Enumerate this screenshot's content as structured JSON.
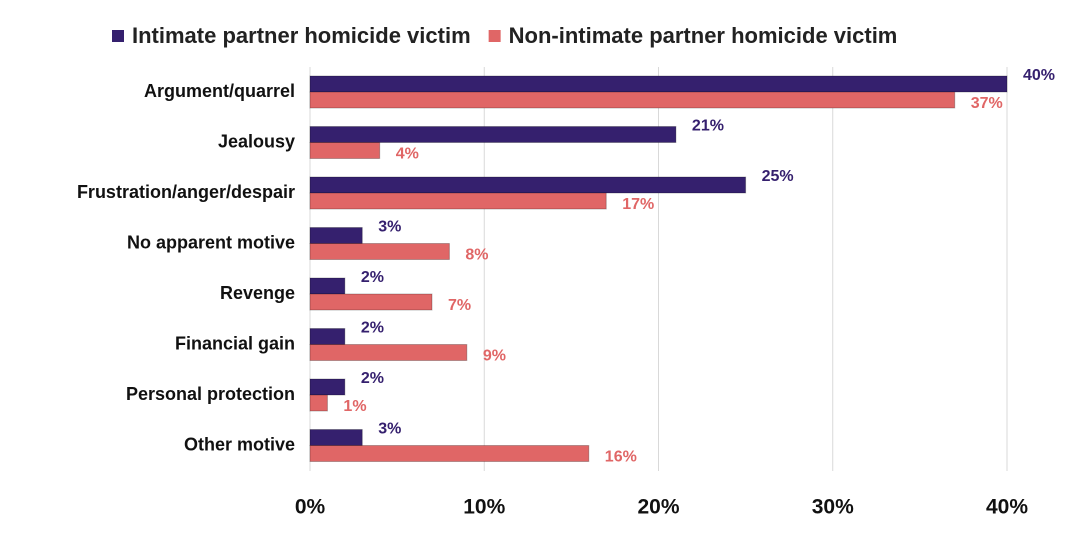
{
  "chart_data": {
    "type": "bar",
    "orientation": "horizontal",
    "categories": [
      "Argument/quarrel",
      "Jealousy",
      "Frustration/anger/despair",
      "No apparent motive",
      "Revenge",
      "Financial gain",
      "Personal protection",
      "Other motive"
    ],
    "series": [
      {
        "name": "Intimate partner homicide victim",
        "color": "#35206e",
        "values": [
          40,
          21,
          25,
          3,
          2,
          2,
          2,
          3
        ],
        "value_labels": [
          "40%",
          "21%",
          "25%",
          "3%",
          "2%",
          "2%",
          "2%",
          "3%"
        ]
      },
      {
        "name": "Non-intimate partner homicide victim",
        "color": "#e06666",
        "values": [
          37,
          4,
          17,
          8,
          7,
          9,
          1,
          16
        ],
        "value_labels": [
          "37%",
          "4%",
          "17%",
          "8%",
          "7%",
          "9%",
          "1%",
          "16%"
        ]
      }
    ],
    "xlim": [
      0,
      40
    ],
    "xticks": [
      {
        "value": 0,
        "label": "0%"
      },
      {
        "value": 10,
        "label": "10%"
      },
      {
        "value": 20,
        "label": "20%"
      },
      {
        "value": 30,
        "label": "30%"
      },
      {
        "value": 40,
        "label": "40%"
      }
    ],
    "grid": true,
    "legend": "top"
  }
}
